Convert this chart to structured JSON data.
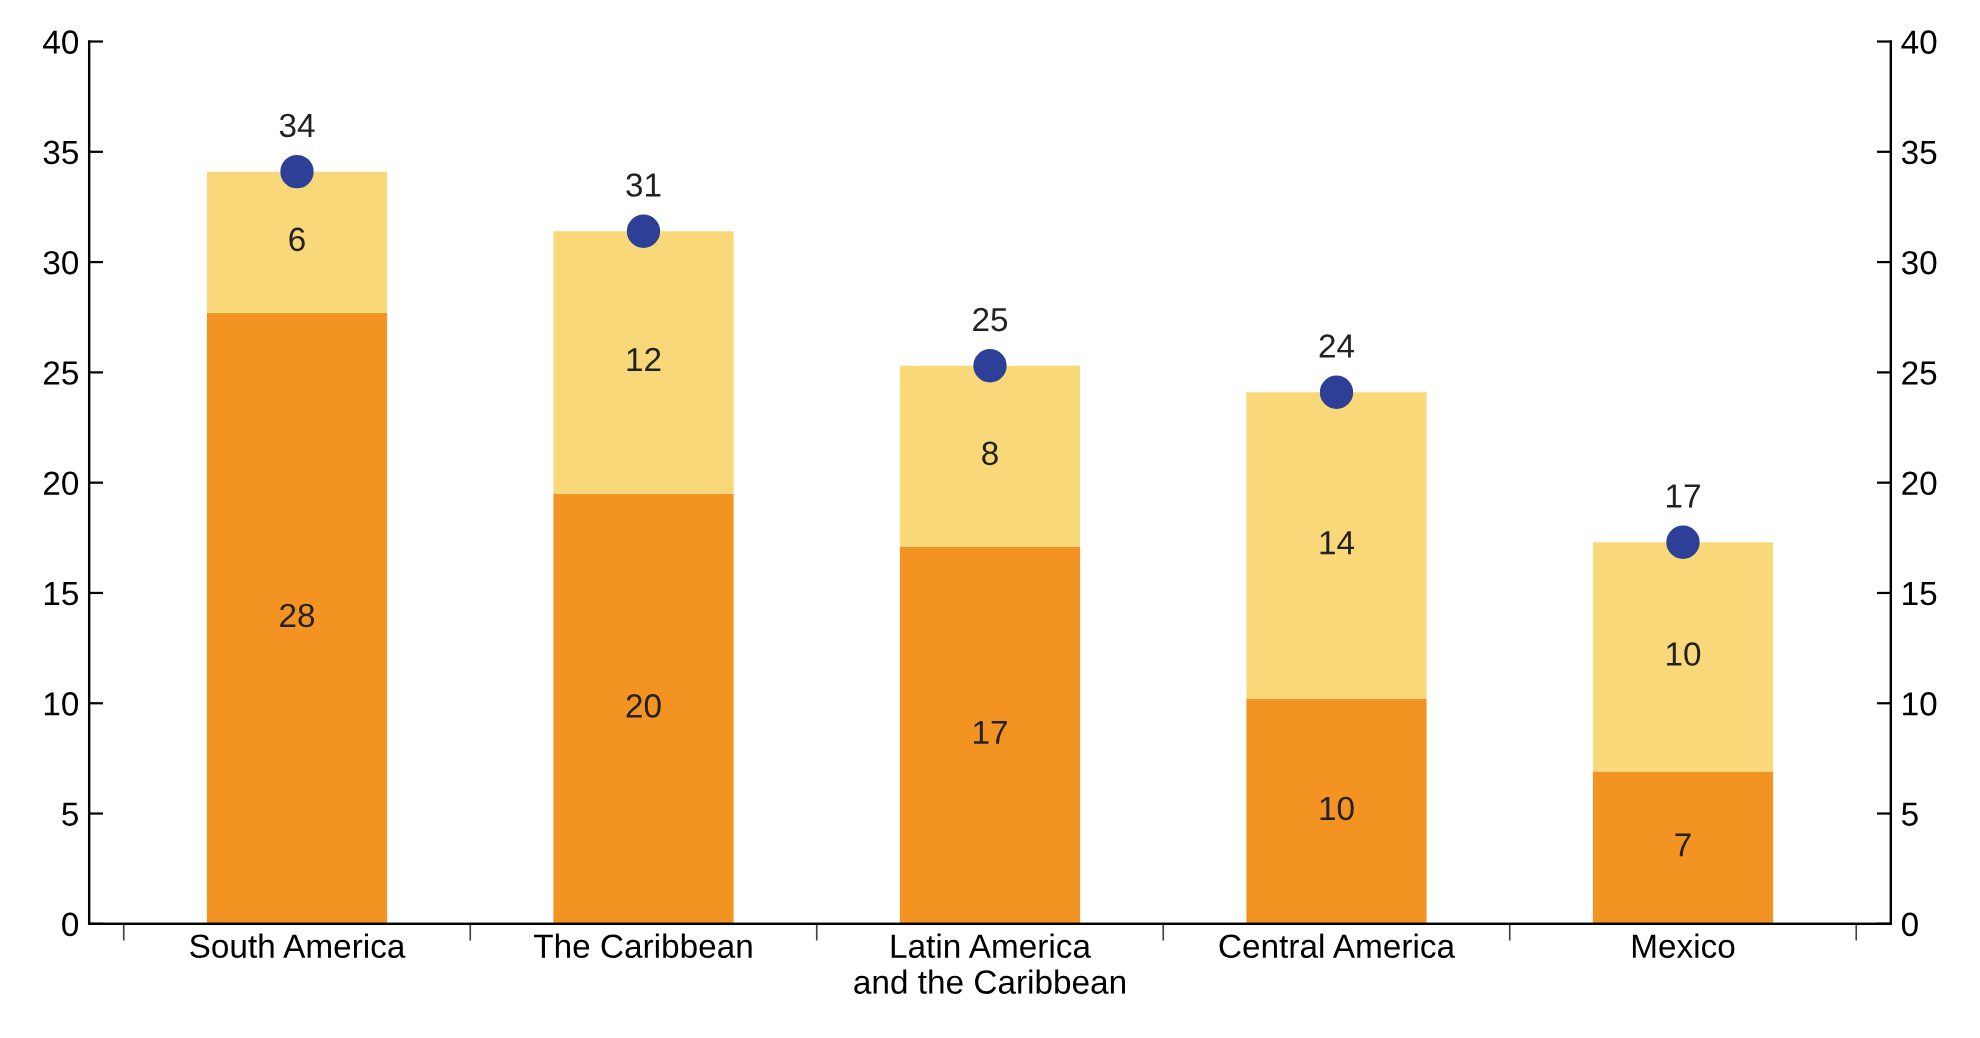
{
  "chart_data": {
    "type": "bar",
    "stacked": true,
    "categories": [
      "South America",
      "The Caribbean",
      "Latin America\nand the Caribbean",
      "Central America",
      "Mexico"
    ],
    "series": [
      {
        "color": "#f39322",
        "values": [
          27.7,
          19.5,
          17.1,
          10.2,
          6.9
        ],
        "value_labels": [
          "28",
          "20",
          "17",
          "10",
          "7"
        ]
      },
      {
        "color": "#f8d878",
        "values": [
          6.4,
          11.9,
          8.2,
          13.9,
          10.4
        ],
        "value_labels": [
          "6",
          "12",
          "8",
          "14",
          "10"
        ]
      },
      {
        "type": "scatter",
        "color": "#2e3f98",
        "values": [
          34.1,
          31.4,
          25.3,
          24.1,
          17.3
        ],
        "value_labels": [
          "34",
          "31",
          "25",
          "24",
          "17"
        ]
      }
    ],
    "ylim": [
      0,
      40
    ],
    "yticks": [
      0,
      5,
      10,
      15,
      20,
      25,
      30,
      35,
      40
    ],
    "y2lim": [
      0,
      40
    ],
    "y2ticks": [
      0,
      5,
      10,
      15,
      20,
      25,
      30,
      35,
      40
    ],
    "grid": false,
    "legend": false,
    "marker": "circle"
  }
}
